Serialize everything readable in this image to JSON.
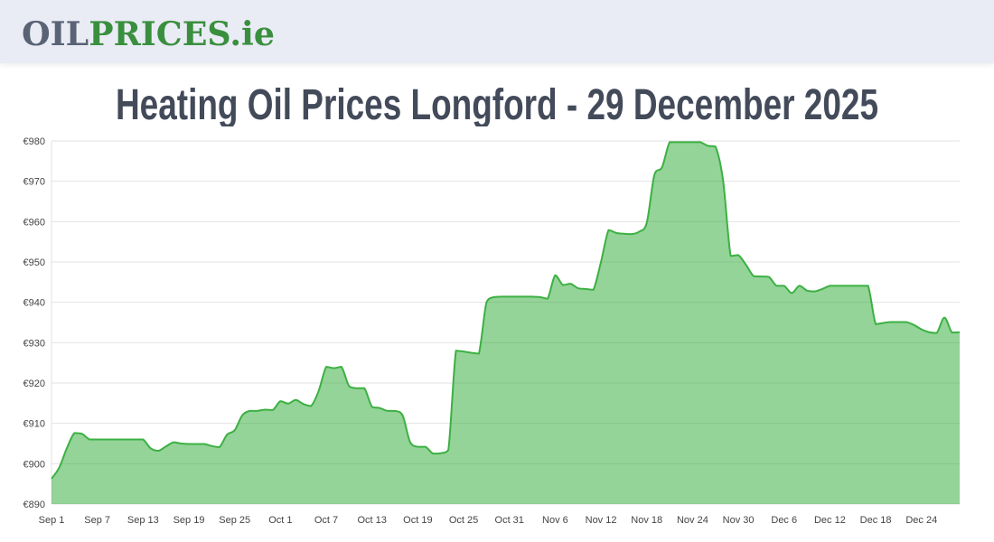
{
  "header": {
    "logo": {
      "part1": "OIL",
      "part2": "PRICES.ie",
      "color1": "#5a6275",
      "color2": "#3a8f3f"
    }
  },
  "page_title": "Heating Oil Prices Longford - 29 December 2025",
  "chart_data": {
    "type": "area",
    "title": "Heating Oil Prices Longford - 29 December 2025",
    "xlabel": "",
    "ylabel": "",
    "ylim": [
      890,
      980
    ],
    "yticks": [
      "€890",
      "€900",
      "€910",
      "€920",
      "€930",
      "€940",
      "€950",
      "€960",
      "€970",
      "€980"
    ],
    "ytick_values": [
      890,
      900,
      910,
      920,
      930,
      940,
      950,
      960,
      970,
      980
    ],
    "xticks": [
      "Sep 1",
      "Sep 7",
      "Sep 13",
      "Sep 19",
      "Sep 25",
      "Oct 1",
      "Oct 7",
      "Oct 13",
      "Oct 19",
      "Oct 25",
      "Oct 31",
      "Nov 6",
      "Nov 12",
      "Nov 18",
      "Nov 24",
      "Nov 30",
      "Dec 6",
      "Dec 12",
      "Dec 18",
      "Dec 24"
    ],
    "grid": true,
    "legend": "none",
    "line_color": "#3cb043",
    "fill_color": "#92d496",
    "x": [
      "Sep 1",
      "Sep 2",
      "Sep 3",
      "Sep 4",
      "Sep 5",
      "Sep 6",
      "Sep 7",
      "Sep 8",
      "Sep 9",
      "Sep 10",
      "Sep 11",
      "Sep 12",
      "Sep 13",
      "Sep 14",
      "Sep 15",
      "Sep 16",
      "Sep 17",
      "Sep 18",
      "Sep 19",
      "Sep 20",
      "Sep 21",
      "Sep 22",
      "Sep 23",
      "Sep 24",
      "Sep 25",
      "Sep 26",
      "Sep 27",
      "Sep 28",
      "Sep 29",
      "Sep 30",
      "Oct 1",
      "Oct 2",
      "Oct 3",
      "Oct 4",
      "Oct 5",
      "Oct 6",
      "Oct 7",
      "Oct 8",
      "Oct 9",
      "Oct 10",
      "Oct 11",
      "Oct 12",
      "Oct 13",
      "Oct 14",
      "Oct 15",
      "Oct 16",
      "Oct 17",
      "Oct 18",
      "Oct 19",
      "Oct 20",
      "Oct 21",
      "Oct 22",
      "Oct 23",
      "Oct 24",
      "Oct 25",
      "Oct 26",
      "Oct 27",
      "Oct 28",
      "Oct 29",
      "Oct 30",
      "Oct 31",
      "Nov 1",
      "Nov 2",
      "Nov 3",
      "Nov 4",
      "Nov 5",
      "Nov 6",
      "Nov 7",
      "Nov 8",
      "Nov 9",
      "Nov 10",
      "Nov 11",
      "Nov 12",
      "Nov 13",
      "Nov 14",
      "Nov 15",
      "Nov 16",
      "Nov 17",
      "Nov 18",
      "Nov 19",
      "Nov 20",
      "Nov 21",
      "Nov 22",
      "Nov 23",
      "Nov 24",
      "Nov 25",
      "Nov 26",
      "Nov 27",
      "Nov 28",
      "Nov 29",
      "Nov 30",
      "Dec 1",
      "Dec 2",
      "Dec 3",
      "Dec 4",
      "Dec 5",
      "Dec 6",
      "Dec 7",
      "Dec 8",
      "Dec 9",
      "Dec 10",
      "Dec 11",
      "Dec 12",
      "Dec 13",
      "Dec 14",
      "Dec 15",
      "Dec 16",
      "Dec 17",
      "Dec 18",
      "Dec 19",
      "Dec 20",
      "Dec 21",
      "Dec 22",
      "Dec 23",
      "Dec 24",
      "Dec 25",
      "Dec 26",
      "Dec 27",
      "Dec 28",
      "Dec 29"
    ],
    "values": [
      896.3,
      899,
      903.8,
      907.6,
      907.4,
      906,
      906,
      906,
      906,
      906,
      906,
      906,
      906,
      903.8,
      903.2,
      904.3,
      905.3,
      905,
      904.9,
      904.9,
      904.9,
      904.4,
      904.1,
      907.2,
      908.3,
      912,
      913.1,
      913.1,
      913.4,
      913.3,
      915.5,
      914.9,
      915.8,
      914.8,
      914.3,
      918,
      924,
      923.7,
      924,
      919.2,
      918.7,
      918.7,
      914.1,
      913.8,
      913.1,
      913.1,
      912,
      905.3,
      904.2,
      904.2,
      902.5,
      902.6,
      903.4,
      928,
      927.8,
      927.5,
      927.3,
      940,
      941.3,
      941.4,
      941.4,
      941.4,
      941.4,
      941.4,
      941.3,
      940.9,
      946.7,
      944.3,
      944.6,
      943.5,
      943.3,
      943.1,
      950,
      957.9,
      957.2,
      957,
      956.9,
      957.5,
      959.7,
      971.6,
      973.5,
      979.7,
      979.7,
      979.7,
      979.7,
      979.7,
      978.8,
      978.6,
      970.2,
      951.5,
      951.7,
      949.3,
      946.5,
      946.4,
      946.3,
      944.1,
      944.1,
      942.3,
      944.1,
      942.9,
      942.7,
      943.3,
      944.1,
      944.1,
      944.1,
      944.1,
      944.1,
      944.1,
      934.6,
      934.9,
      935.1,
      935.1,
      935.1,
      934.4,
      933.3,
      932.6,
      932.4,
      936.2,
      932.5,
      932.6
    ]
  }
}
